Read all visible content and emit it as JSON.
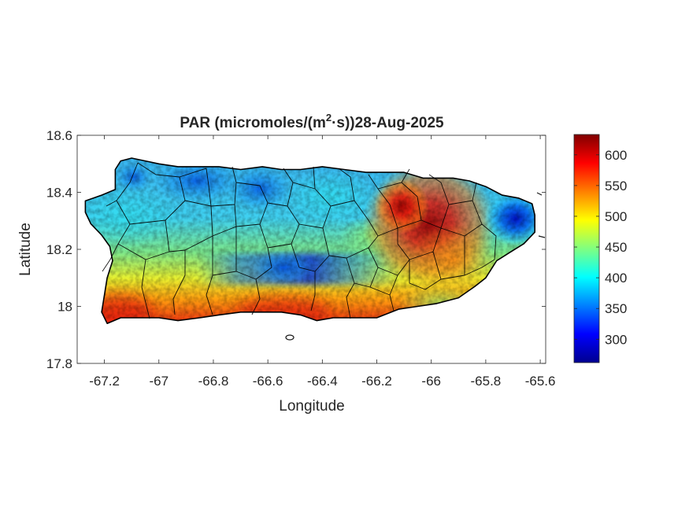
{
  "map": {
    "title_prefix": "PAR (micromoles/(m",
    "title_sup": "2",
    "title_suffix": "·s))28-Aug-2025",
    "xlabel": "Longitude",
    "ylabel": "Latitude",
    "region": "Puerto Rico",
    "xlim": [
      -67.3,
      -65.58
    ],
    "ylim": [
      17.8,
      18.6
    ],
    "x_ticks": [
      {
        "value": -67.2,
        "label": "-67.2"
      },
      {
        "value": -67.0,
        "label": "-67"
      },
      {
        "value": -66.8,
        "label": "-66.8"
      },
      {
        "value": -66.6,
        "label": "-66.6"
      },
      {
        "value": -66.4,
        "label": "-66.4"
      },
      {
        "value": -66.2,
        "label": "-66.2"
      },
      {
        "value": -66.0,
        "label": "-66"
      },
      {
        "value": -65.8,
        "label": "-65.8"
      },
      {
        "value": -65.6,
        "label": "-65.6"
      }
    ],
    "y_ticks": [
      {
        "value": 17.8,
        "label": "17.8"
      },
      {
        "value": 18.0,
        "label": "18"
      },
      {
        "value": 18.2,
        "label": "18.2"
      },
      {
        "value": 18.4,
        "label": "18.4"
      },
      {
        "value": 18.6,
        "label": "18.6"
      }
    ],
    "colorbar": {
      "colormap": "jet",
      "range": [
        262,
        633
      ],
      "ticks": [
        {
          "value": 300,
          "label": "300"
        },
        {
          "value": 350,
          "label": "350"
        },
        {
          "value": 400,
          "label": "400"
        },
        {
          "value": 450,
          "label": "450"
        },
        {
          "value": 500,
          "label": "500"
        },
        {
          "value": 550,
          "label": "550"
        },
        {
          "value": 600,
          "label": "600"
        }
      ]
    },
    "colors": {
      "jet": [
        "#00008f",
        "#0000ff",
        "#0080ff",
        "#00ffff",
        "#80ff80",
        "#ffff00",
        "#ff8000",
        "#ff0000",
        "#800000"
      ],
      "border": "#000000",
      "text": "#262626"
    }
  }
}
